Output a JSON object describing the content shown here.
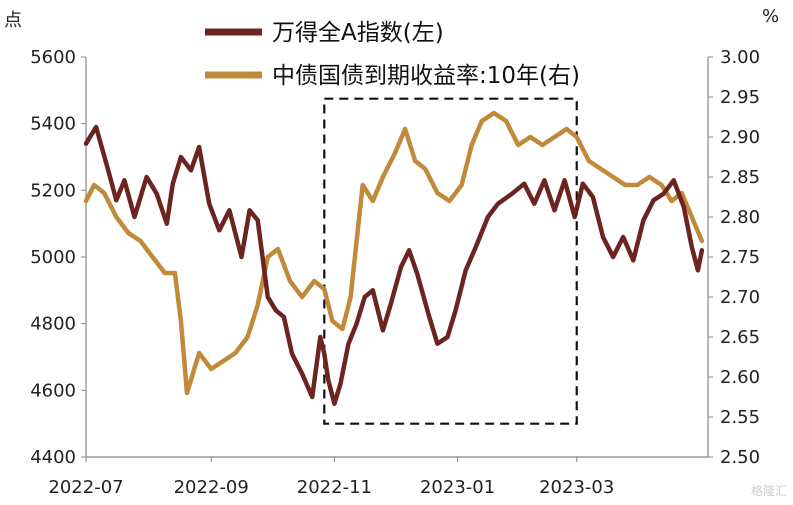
{
  "chart_data": {
    "type": "line",
    "left_unit": "点",
    "right_unit": "%",
    "x_ticks": [
      "2022-07",
      "2022-09",
      "2022-11",
      "2023-01",
      "2023-03"
    ],
    "y_left": {
      "min": 4400,
      "max": 5600,
      "ticks": [
        "4400",
        "4600",
        "4800",
        "5000",
        "5200",
        "5400",
        "5600"
      ]
    },
    "y_right": {
      "min": 2.5,
      "max": 3.0,
      "ticks": [
        "2.50",
        "2.55",
        "2.60",
        "2.65",
        "2.70",
        "2.75",
        "2.80",
        "2.85",
        "2.90",
        "2.95",
        "3.00"
      ]
    },
    "series": [
      {
        "name": "万得全A指数(左)",
        "axis": "left",
        "color": "#6b2420",
        "points": [
          [
            "2022-07-01",
            5340
          ],
          [
            "2022-07-06",
            5390
          ],
          [
            "2022-07-12",
            5260
          ],
          [
            "2022-07-16",
            5170
          ],
          [
            "2022-07-20",
            5230
          ],
          [
            "2022-07-25",
            5120
          ],
          [
            "2022-07-31",
            5240
          ],
          [
            "2022-08-05",
            5190
          ],
          [
            "2022-08-10",
            5100
          ],
          [
            "2022-08-13",
            5220
          ],
          [
            "2022-08-17",
            5300
          ],
          [
            "2022-08-22",
            5260
          ],
          [
            "2022-08-26",
            5330
          ],
          [
            "2022-08-31",
            5160
          ],
          [
            "2022-09-05",
            5080
          ],
          [
            "2022-09-10",
            5140
          ],
          [
            "2022-09-16",
            5000
          ],
          [
            "2022-09-20",
            5140
          ],
          [
            "2022-09-24",
            5110
          ],
          [
            "2022-09-29",
            4880
          ],
          [
            "2022-10-03",
            4840
          ],
          [
            "2022-10-07",
            4820
          ],
          [
            "2022-10-11",
            4710
          ],
          [
            "2022-10-16",
            4650
          ],
          [
            "2022-10-21",
            4580
          ],
          [
            "2022-10-25",
            4760
          ],
          [
            "2022-10-27",
            4710
          ],
          [
            "2022-10-29",
            4630
          ],
          [
            "2022-11-01",
            4560
          ],
          [
            "2022-11-04",
            4620
          ],
          [
            "2022-11-08",
            4740
          ],
          [
            "2022-11-12",
            4800
          ],
          [
            "2022-11-16",
            4880
          ],
          [
            "2022-11-20",
            4900
          ],
          [
            "2022-11-25",
            4780
          ],
          [
            "2022-11-29",
            4860
          ],
          [
            "2022-12-04",
            4970
          ],
          [
            "2022-12-08",
            5020
          ],
          [
            "2022-12-12",
            4950
          ],
          [
            "2022-12-18",
            4820
          ],
          [
            "2022-12-22",
            4740
          ],
          [
            "2022-12-27",
            4760
          ],
          [
            "2022-12-31",
            4840
          ],
          [
            "2023-01-05",
            4960
          ],
          [
            "2023-01-10",
            5030
          ],
          [
            "2023-01-16",
            5120
          ],
          [
            "2023-01-21",
            5160
          ],
          [
            "2023-01-28",
            5190
          ],
          [
            "2023-02-03",
            5220
          ],
          [
            "2023-02-08",
            5160
          ],
          [
            "2023-02-13",
            5230
          ],
          [
            "2023-02-18",
            5140
          ],
          [
            "2023-02-23",
            5230
          ],
          [
            "2023-02-28",
            5120
          ],
          [
            "2023-03-04",
            5220
          ],
          [
            "2023-03-09",
            5180
          ],
          [
            "2023-03-14",
            5060
          ],
          [
            "2023-03-19",
            5000
          ],
          [
            "2023-03-24",
            5060
          ],
          [
            "2023-03-29",
            4990
          ],
          [
            "2023-04-03",
            5110
          ],
          [
            "2023-04-08",
            5170
          ],
          [
            "2023-04-13",
            5190
          ],
          [
            "2023-04-18",
            5230
          ],
          [
            "2023-04-23",
            5150
          ],
          [
            "2023-04-27",
            5030
          ],
          [
            "2023-04-30",
            4960
          ],
          [
            "2023-05-02",
            5020
          ]
        ]
      },
      {
        "name": "中债国债到期收益率:10年(右)",
        "axis": "right",
        "color": "#c18a3a",
        "points": [
          [
            "2022-07-01",
            2.82
          ],
          [
            "2022-07-05",
            2.84
          ],
          [
            "2022-07-10",
            2.83
          ],
          [
            "2022-07-16",
            2.8
          ],
          [
            "2022-07-22",
            2.78
          ],
          [
            "2022-07-28",
            2.77
          ],
          [
            "2022-08-03",
            2.75
          ],
          [
            "2022-08-09",
            2.73
          ],
          [
            "2022-08-14",
            2.73
          ],
          [
            "2022-08-17",
            2.67
          ],
          [
            "2022-08-20",
            2.58
          ],
          [
            "2022-08-26",
            2.63
          ],
          [
            "2022-09-01",
            2.61
          ],
          [
            "2022-09-07",
            2.62
          ],
          [
            "2022-09-13",
            2.63
          ],
          [
            "2022-09-19",
            2.65
          ],
          [
            "2022-09-24",
            2.69
          ],
          [
            "2022-09-29",
            2.75
          ],
          [
            "2022-10-04",
            2.76
          ],
          [
            "2022-10-10",
            2.72
          ],
          [
            "2022-10-16",
            2.7
          ],
          [
            "2022-10-22",
            2.72
          ],
          [
            "2022-10-27",
            2.71
          ],
          [
            "2022-10-31",
            2.67
          ],
          [
            "2022-11-05",
            2.66
          ],
          [
            "2022-11-09",
            2.7
          ],
          [
            "2022-11-12",
            2.77
          ],
          [
            "2022-11-15",
            2.84
          ],
          [
            "2022-11-20",
            2.82
          ],
          [
            "2022-11-25",
            2.85
          ],
          [
            "2022-12-01",
            2.88
          ],
          [
            "2022-12-06",
            2.91
          ],
          [
            "2022-12-11",
            2.87
          ],
          [
            "2022-12-16",
            2.86
          ],
          [
            "2022-12-22",
            2.83
          ],
          [
            "2022-12-28",
            2.82
          ],
          [
            "2023-01-03",
            2.84
          ],
          [
            "2023-01-08",
            2.89
          ],
          [
            "2023-01-13",
            2.92
          ],
          [
            "2023-01-19",
            2.93
          ],
          [
            "2023-01-25",
            2.92
          ],
          [
            "2023-01-31",
            2.89
          ],
          [
            "2023-02-06",
            2.9
          ],
          [
            "2023-02-12",
            2.89
          ],
          [
            "2023-02-18",
            2.9
          ],
          [
            "2023-02-24",
            2.91
          ],
          [
            "2023-03-01",
            2.9
          ],
          [
            "2023-03-07",
            2.87
          ],
          [
            "2023-03-13",
            2.86
          ],
          [
            "2023-03-19",
            2.85
          ],
          [
            "2023-03-25",
            2.84
          ],
          [
            "2023-03-31",
            2.84
          ],
          [
            "2023-04-06",
            2.85
          ],
          [
            "2023-04-12",
            2.84
          ],
          [
            "2023-04-17",
            2.82
          ],
          [
            "2023-04-22",
            2.83
          ],
          [
            "2023-04-27",
            2.8
          ],
          [
            "2023-05-02",
            2.77
          ]
        ]
      }
    ],
    "highlight_box": {
      "x_start": "2022-10-27",
      "x_end": "2023-03-01",
      "y_left_top": 5475,
      "y_left_bottom": 4500
    }
  },
  "watermark": "格隆汇"
}
